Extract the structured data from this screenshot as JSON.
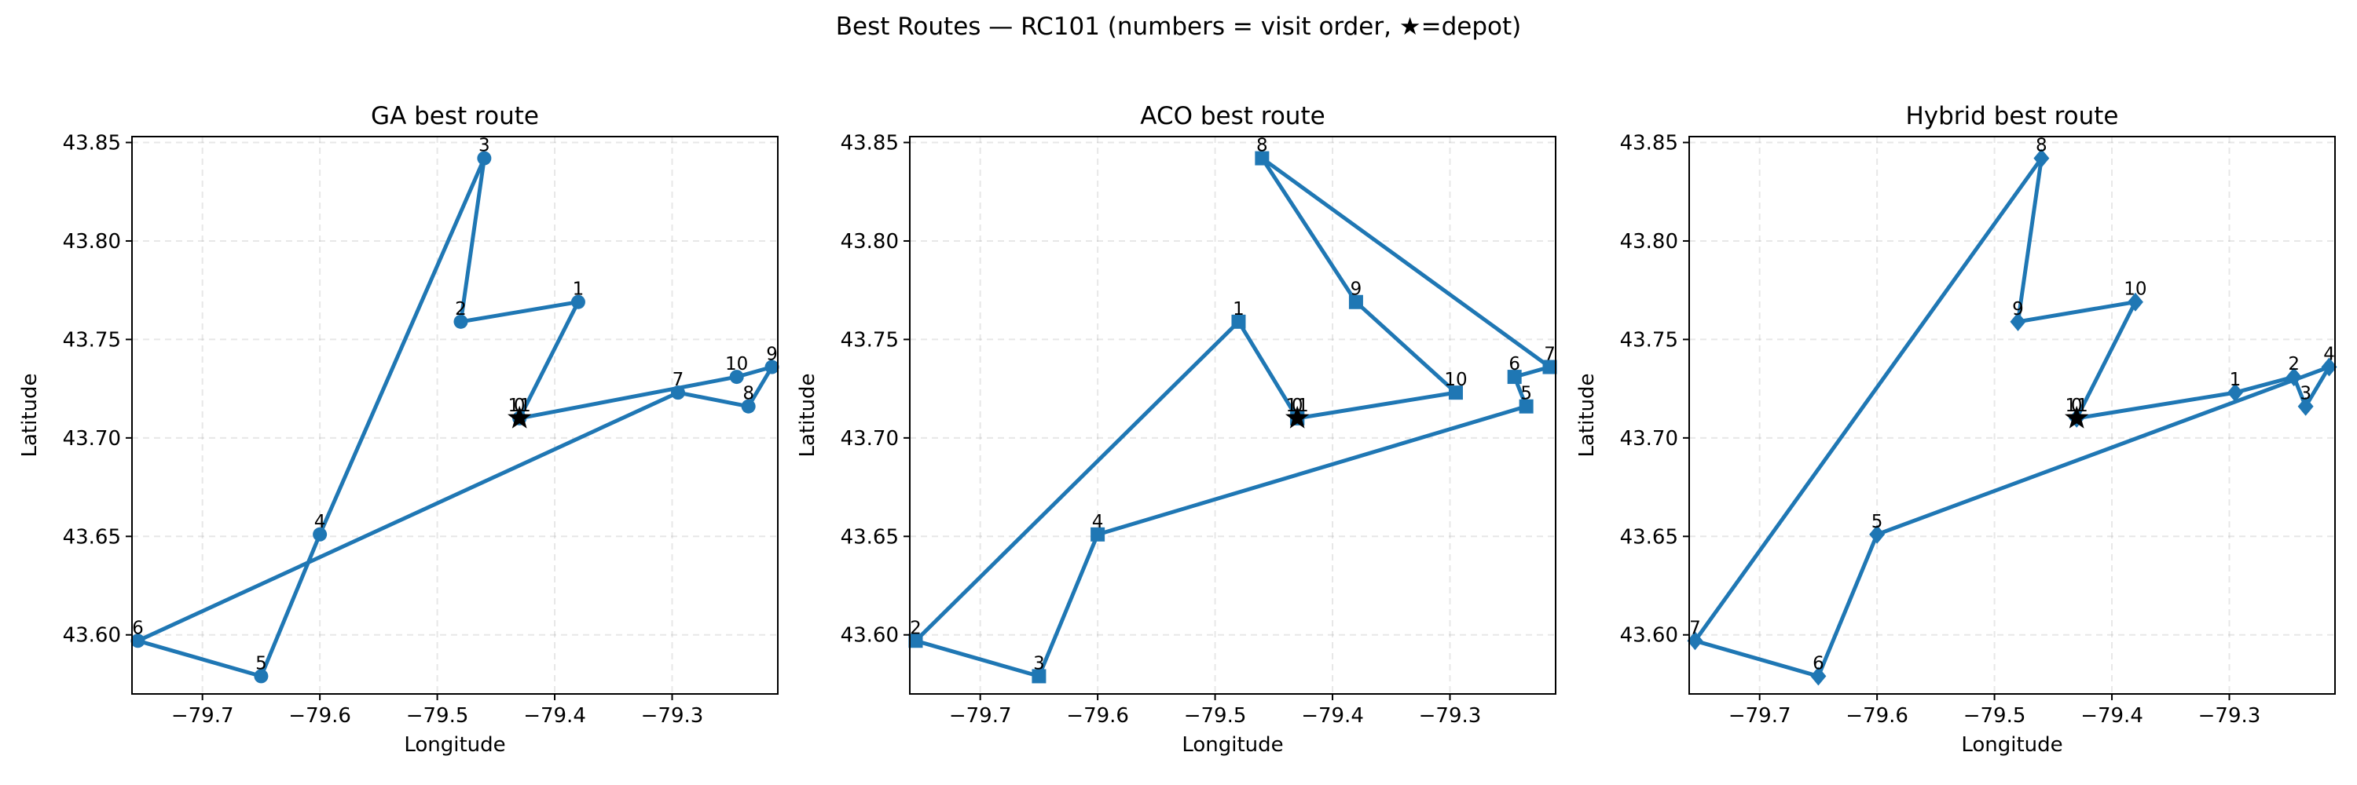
{
  "figure": {
    "suptitle": "Best Routes — RC101 (numbers = visit order, ★=depot)"
  },
  "chart_data": [
    {
      "type": "line",
      "title": "GA best route",
      "xlabel": "Longitude",
      "ylabel": "Latitude",
      "xlim": [
        -79.76,
        -79.21
      ],
      "ylim": [
        43.57,
        43.853
      ],
      "xticks": [
        -79.7,
        -79.6,
        -79.5,
        -79.4,
        -79.3
      ],
      "xtick_labels": [
        "−79.7",
        "−79.6",
        "−79.5",
        "−79.4",
        "−79.3"
      ],
      "yticks": [
        43.6,
        43.65,
        43.7,
        43.75,
        43.8,
        43.85
      ],
      "ytick_labels": [
        "43.60",
        "43.65",
        "43.70",
        "43.75",
        "43.80",
        "43.85"
      ],
      "grid": true,
      "marker": "circle",
      "color": "#1f77b4",
      "depot": {
        "x": -79.43,
        "y": 43.71
      },
      "route": [
        {
          "label": "0",
          "x": -79.43,
          "y": 43.71
        },
        {
          "label": "1",
          "x": -79.38,
          "y": 43.769
        },
        {
          "label": "2",
          "x": -79.48,
          "y": 43.759
        },
        {
          "label": "3",
          "x": -79.46,
          "y": 43.842
        },
        {
          "label": "4",
          "x": -79.6,
          "y": 43.651
        },
        {
          "label": "5",
          "x": -79.65,
          "y": 43.579
        },
        {
          "label": "6",
          "x": -79.755,
          "y": 43.597
        },
        {
          "label": "7",
          "x": -79.295,
          "y": 43.723
        },
        {
          "label": "8",
          "x": -79.235,
          "y": 43.716
        },
        {
          "label": "9",
          "x": -79.215,
          "y": 43.736
        },
        {
          "label": "10",
          "x": -79.245,
          "y": 43.731
        },
        {
          "label": "11",
          "x": -79.43,
          "y": 43.71
        }
      ]
    },
    {
      "type": "line",
      "title": "ACO best route",
      "xlabel": "Longitude",
      "ylabel": "Latitude",
      "xlim": [
        -79.76,
        -79.21
      ],
      "ylim": [
        43.57,
        43.853
      ],
      "xticks": [
        -79.7,
        -79.6,
        -79.5,
        -79.4,
        -79.3
      ],
      "xtick_labels": [
        "−79.7",
        "−79.6",
        "−79.5",
        "−79.4",
        "−79.3"
      ],
      "yticks": [
        43.6,
        43.65,
        43.7,
        43.75,
        43.8,
        43.85
      ],
      "ytick_labels": [
        "43.60",
        "43.65",
        "43.70",
        "43.75",
        "43.80",
        "43.85"
      ],
      "grid": true,
      "marker": "square",
      "color": "#1f77b4",
      "depot": {
        "x": -79.43,
        "y": 43.71
      },
      "route": [
        {
          "label": "0",
          "x": -79.43,
          "y": 43.71
        },
        {
          "label": "1",
          "x": -79.48,
          "y": 43.759
        },
        {
          "label": "2",
          "x": -79.755,
          "y": 43.597
        },
        {
          "label": "3",
          "x": -79.65,
          "y": 43.579
        },
        {
          "label": "4",
          "x": -79.6,
          "y": 43.651
        },
        {
          "label": "5",
          "x": -79.235,
          "y": 43.716
        },
        {
          "label": "6",
          "x": -79.245,
          "y": 43.731
        },
        {
          "label": "7",
          "x": -79.215,
          "y": 43.736
        },
        {
          "label": "8",
          "x": -79.46,
          "y": 43.842
        },
        {
          "label": "9",
          "x": -79.38,
          "y": 43.769
        },
        {
          "label": "10",
          "x": -79.295,
          "y": 43.723
        },
        {
          "label": "11",
          "x": -79.43,
          "y": 43.71
        }
      ]
    },
    {
      "type": "line",
      "title": "Hybrid best route",
      "xlabel": "Longitude",
      "ylabel": "Latitude",
      "xlim": [
        -79.76,
        -79.21
      ],
      "ylim": [
        43.57,
        43.853
      ],
      "xticks": [
        -79.7,
        -79.6,
        -79.5,
        -79.4,
        -79.3
      ],
      "xtick_labels": [
        "−79.7",
        "−79.6",
        "−79.5",
        "−79.4",
        "−79.3"
      ],
      "yticks": [
        43.6,
        43.65,
        43.7,
        43.75,
        43.8,
        43.85
      ],
      "ytick_labels": [
        "43.60",
        "43.65",
        "43.70",
        "43.75",
        "43.80",
        "43.85"
      ],
      "grid": true,
      "marker": "diamond",
      "color": "#1f77b4",
      "depot": {
        "x": -79.43,
        "y": 43.71
      },
      "route": [
        {
          "label": "0",
          "x": -79.43,
          "y": 43.71
        },
        {
          "label": "1",
          "x": -79.295,
          "y": 43.723
        },
        {
          "label": "2",
          "x": -79.245,
          "y": 43.731
        },
        {
          "label": "3",
          "x": -79.235,
          "y": 43.716
        },
        {
          "label": "4",
          "x": -79.215,
          "y": 43.736
        },
        {
          "label": "5",
          "x": -79.6,
          "y": 43.651
        },
        {
          "label": "6",
          "x": -79.65,
          "y": 43.579
        },
        {
          "label": "7",
          "x": -79.755,
          "y": 43.597
        },
        {
          "label": "8",
          "x": -79.46,
          "y": 43.842
        },
        {
          "label": "9",
          "x": -79.48,
          "y": 43.759
        },
        {
          "label": "10",
          "x": -79.38,
          "y": 43.769
        },
        {
          "label": "11",
          "x": -79.43,
          "y": 43.71
        }
      ]
    }
  ]
}
